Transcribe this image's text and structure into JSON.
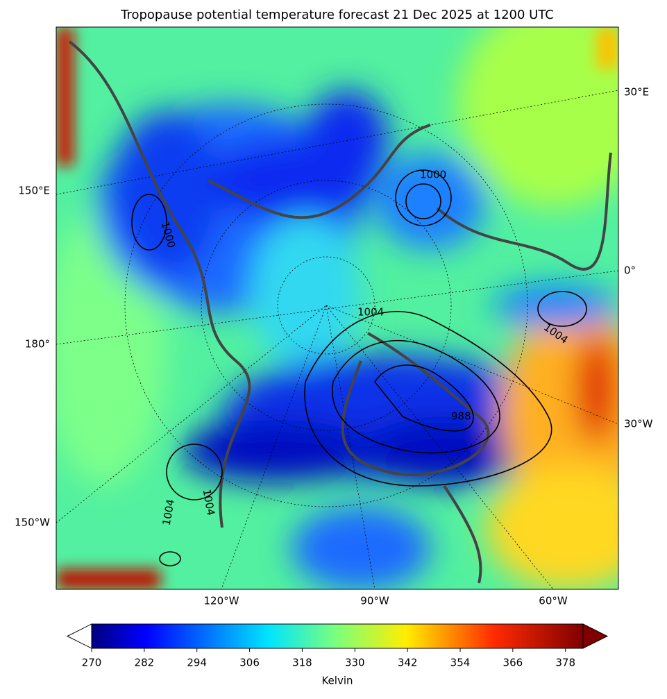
{
  "title": "Tropopause potential temperature forecast 21 Dec 2025 at 1200 UTC",
  "map": {
    "left_labels": [
      "150°E",
      "180°",
      "150°W"
    ],
    "right_labels": [
      "30°E",
      "0°",
      "30°W"
    ],
    "bottom_labels": [
      "120°W",
      "90°W",
      "60°W"
    ],
    "contour_labels": [
      "1000",
      "1004",
      "1000",
      "1004",
      "1004",
      "1004",
      "988"
    ]
  },
  "colorbar": {
    "label": "Kelvin",
    "range": [
      270,
      382
    ],
    "ticks": [
      270,
      282,
      294,
      306,
      318,
      330,
      342,
      354,
      366,
      378
    ]
  }
}
